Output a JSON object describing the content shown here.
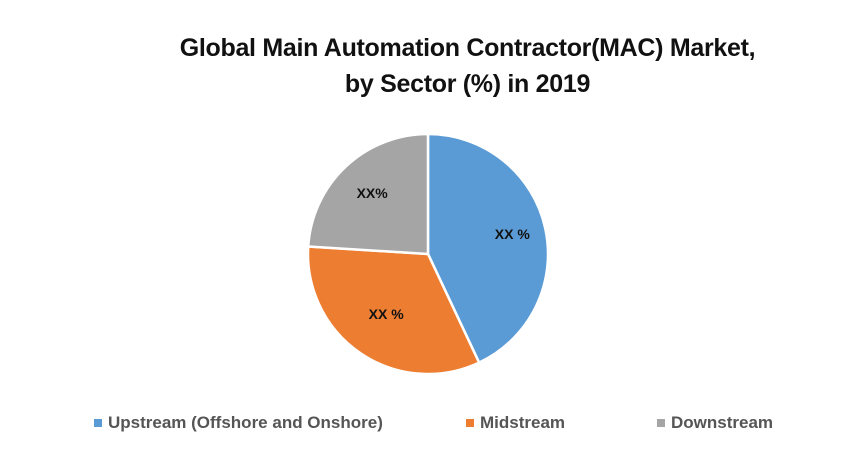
{
  "chart_data": {
    "type": "pie",
    "title": "Global Main Automation Contractor(MAC) Market, by Sector (%) in 2019",
    "title_lines": [
      "Global Main Automation Contractor(MAC) Market,",
      "by Sector (%) in 2019"
    ],
    "categories": [
      "Upstream (Offshore and Onshore)",
      "Midstream",
      "Downstream"
    ],
    "values": [
      43,
      33,
      24
    ],
    "data_labels": [
      "XX %",
      "XX %",
      "XX%"
    ],
    "colors": [
      "#5B9BD5",
      "#ED7D31",
      "#A5A5A5"
    ],
    "start_angle_deg": 0,
    "direction": "clockwise",
    "legend_position": "bottom"
  }
}
